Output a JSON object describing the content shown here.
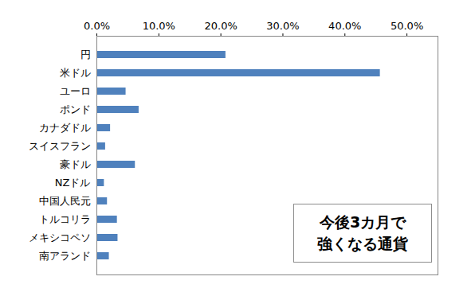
{
  "chart_data": {
    "type": "bar",
    "orientation": "horizontal",
    "title": "今後3カ月で\n強くなる通貨",
    "categories": [
      "円",
      "米ドル",
      "ユーロ",
      "ポンド",
      "カナダドル",
      "スイスフラン",
      "豪ドル",
      "NZドル",
      "中国人民元",
      "トルコリラ",
      "メキシコペソ",
      "南アランド"
    ],
    "values": [
      20.8,
      45.7,
      4.7,
      6.8,
      2.2,
      1.4,
      6.2,
      1.2,
      1.7,
      3.3,
      3.4,
      2.0
    ],
    "color": "#4f81bd",
    "xlim": [
      0,
      55
    ],
    "xticks": [
      {
        "value": 0,
        "label": "0.0%"
      },
      {
        "value": 10,
        "label": "10.0%"
      },
      {
        "value": 20,
        "label": "20.0%"
      },
      {
        "value": 30,
        "label": "30.0%"
      },
      {
        "value": 40,
        "label": "40.0%"
      },
      {
        "value": 50,
        "label": "50.0%"
      }
    ],
    "grid": false
  }
}
